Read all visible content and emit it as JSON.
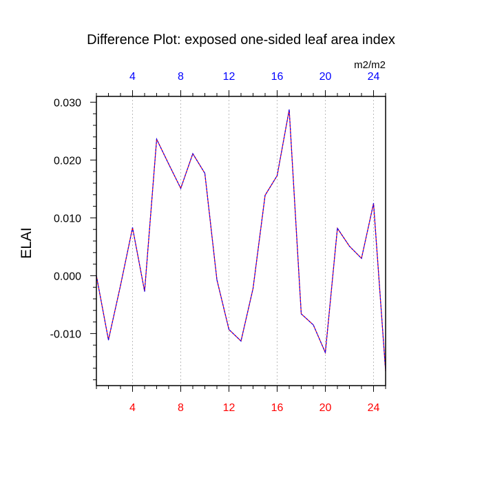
{
  "chart_data": {
    "type": "line",
    "title": "Difference Plot: exposed one-sided leaf area index",
    "ylabel": "ELAI",
    "units": "m2/m2",
    "xlim": [
      1,
      25
    ],
    "ylim": [
      -0.019,
      0.031
    ],
    "x_ticks": [
      4,
      8,
      12,
      16,
      20,
      24
    ],
    "x_tick_labels": [
      "4",
      "8",
      "12",
      "16",
      "20",
      "24"
    ],
    "y_ticks": [
      -0.01,
      0.0,
      0.01,
      0.02,
      0.03
    ],
    "y_tick_labels": [
      "-0.010",
      "0.000",
      "0.010",
      "0.020",
      "0.030"
    ],
    "grid": "vertical dashed at x ticks",
    "colors": {
      "bottom_tick_labels": "#ff0000",
      "top_tick_labels": "#0000ff",
      "series_dash_a": "#0000ff",
      "series_dash_b": "#ff0000",
      "grid": "#bbbbbb"
    },
    "x": [
      1,
      2,
      3,
      4,
      5,
      6,
      7,
      8,
      9,
      10,
      11,
      12,
      13,
      14,
      15,
      16,
      17,
      18,
      19,
      20,
      21,
      22,
      23,
      24,
      25
    ],
    "series": [
      {
        "values": [
          0.0,
          -0.0111,
          -0.0017,
          0.0083,
          -0.0027,
          0.0236,
          0.0193,
          0.0151,
          0.0211,
          0.0177,
          -0.0007,
          -0.0093,
          -0.0113,
          -0.0022,
          0.0139,
          0.0173,
          0.0287,
          -0.0066,
          -0.0085,
          -0.0133,
          0.0082,
          0.0051,
          0.003,
          0.0125,
          -0.0165
        ]
      }
    ]
  }
}
